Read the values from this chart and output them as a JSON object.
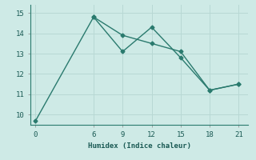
{
  "line1_x": [
    0,
    6,
    9,
    12,
    15,
    18,
    21
  ],
  "line1_y": [
    9.7,
    14.8,
    13.9,
    13.5,
    13.1,
    11.2,
    11.5
  ],
  "line2_x": [
    6,
    9,
    12,
    15,
    18,
    21
  ],
  "line2_y": [
    14.8,
    13.1,
    14.3,
    12.8,
    11.2,
    11.5
  ],
  "line_color": "#2a7a6e",
  "bg_color": "#ceeae6",
  "xlabel": "Humidex (Indice chaleur)",
  "xlim": [
    -0.5,
    22
  ],
  "ylim": [
    9.5,
    15.4
  ],
  "xticks": [
    0,
    6,
    9,
    12,
    15,
    18,
    21
  ],
  "yticks": [
    10,
    11,
    12,
    13,
    14,
    15
  ],
  "grid_color": "#b8d8d4",
  "marker": "D",
  "marker_size": 2.5,
  "line_width": 1.0
}
